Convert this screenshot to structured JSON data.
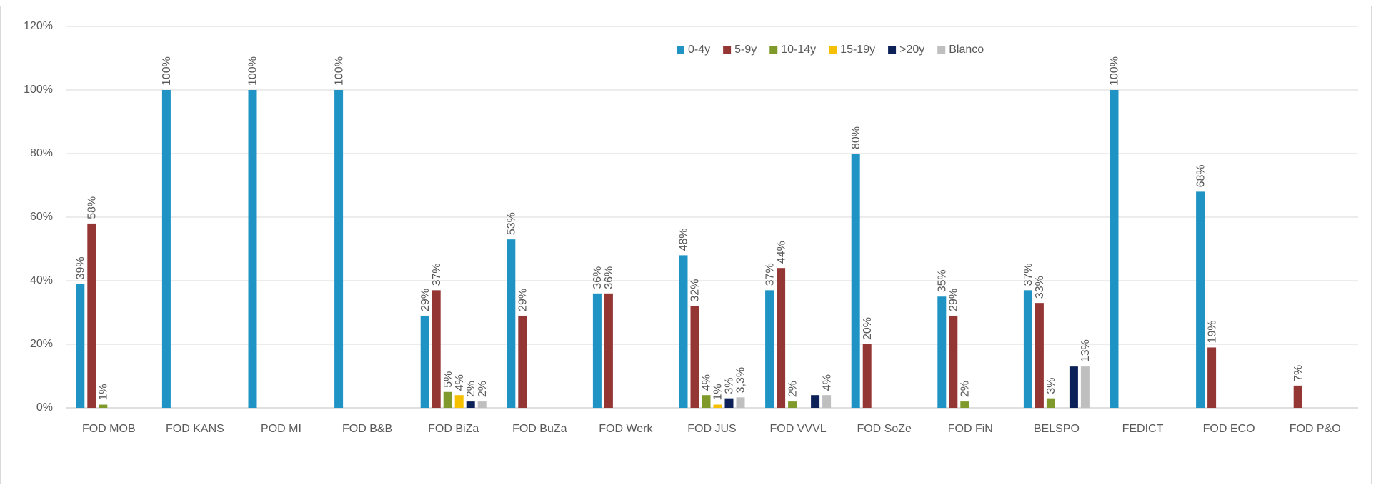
{
  "chart_data": {
    "type": "bar",
    "categories": [
      "FOD MOB",
      "FOD KANS",
      "POD MI",
      "FOD B&B",
      "FOD BiZa",
      "FOD BuZa",
      "FOD Werk",
      "FOD JUS",
      "FOD VVVL",
      "FOD SoZe",
      "FOD FiN",
      "BELSPO",
      "FEDICT",
      "FOD ECO",
      "FOD P&O"
    ],
    "series": [
      {
        "name": "0-4y",
        "color": "#1f94c4",
        "values": [
          39,
          100,
          100,
          100,
          29,
          53,
          36,
          48,
          37,
          80,
          35,
          37,
          100,
          68,
          null
        ],
        "value_labels": [
          "39%",
          "100%",
          "100%",
          "100%",
          "29%",
          "53%",
          "36%",
          "48%",
          "37%",
          "80%",
          "35%",
          "37%",
          "100%",
          "68%",
          null
        ]
      },
      {
        "name": "5-9y",
        "color": "#943634",
        "values": [
          58,
          null,
          null,
          null,
          37,
          29,
          36,
          32,
          44,
          20,
          29,
          33,
          null,
          19,
          7
        ],
        "value_labels": [
          "58%",
          null,
          null,
          null,
          "37%",
          "29%",
          "36%",
          "32%",
          "44%",
          "20%",
          "29%",
          "33%",
          null,
          "19%",
          "7%"
        ]
      },
      {
        "name": "10-14y",
        "color": "#7f9a2a",
        "values": [
          1,
          null,
          null,
          null,
          5,
          null,
          null,
          4,
          2,
          null,
          2,
          3,
          null,
          null,
          null
        ],
        "value_labels": [
          "1%",
          null,
          null,
          null,
          "5%",
          null,
          null,
          "4%",
          "2%",
          null,
          "2%",
          "3%",
          null,
          null,
          null
        ]
      },
      {
        "name": "15-19y",
        "color": "#f5c000",
        "values": [
          null,
          null,
          null,
          null,
          4,
          null,
          null,
          1,
          null,
          null,
          null,
          null,
          null,
          null,
          null
        ],
        "value_labels": [
          null,
          null,
          null,
          null,
          "4%",
          null,
          null,
          "1%",
          null,
          null,
          null,
          null,
          null,
          null,
          null
        ]
      },
      {
        "name": ">20y",
        "color": "#0c2157",
        "values": [
          null,
          null,
          null,
          null,
          2,
          null,
          null,
          3,
          4,
          null,
          null,
          13,
          null,
          null,
          null
        ],
        "value_labels": [
          null,
          null,
          null,
          null,
          "2%",
          null,
          null,
          "3%",
          null,
          null,
          null,
          null,
          null,
          null,
          null
        ]
      },
      {
        "name": "Blanco",
        "color": "#bfbfbf",
        "values": [
          null,
          null,
          null,
          null,
          2,
          null,
          null,
          3.3,
          4,
          null,
          null,
          13,
          null,
          null,
          null
        ],
        "value_labels": [
          null,
          null,
          null,
          null,
          "2%",
          null,
          null,
          "3,3%",
          "4%",
          null,
          null,
          "13%",
          null,
          null,
          null
        ]
      }
    ],
    "ylim": [
      0,
      120
    ],
    "yticks": [
      {
        "value": 0,
        "label": "0%"
      },
      {
        "value": 20,
        "label": "20%"
      },
      {
        "value": 40,
        "label": "40%"
      },
      {
        "value": 60,
        "label": "60%"
      },
      {
        "value": 80,
        "label": "80%"
      },
      {
        "value": 100,
        "label": "100%"
      },
      {
        "value": 120,
        "label": "120%"
      }
    ],
    "grid": true,
    "legend": "top"
  }
}
